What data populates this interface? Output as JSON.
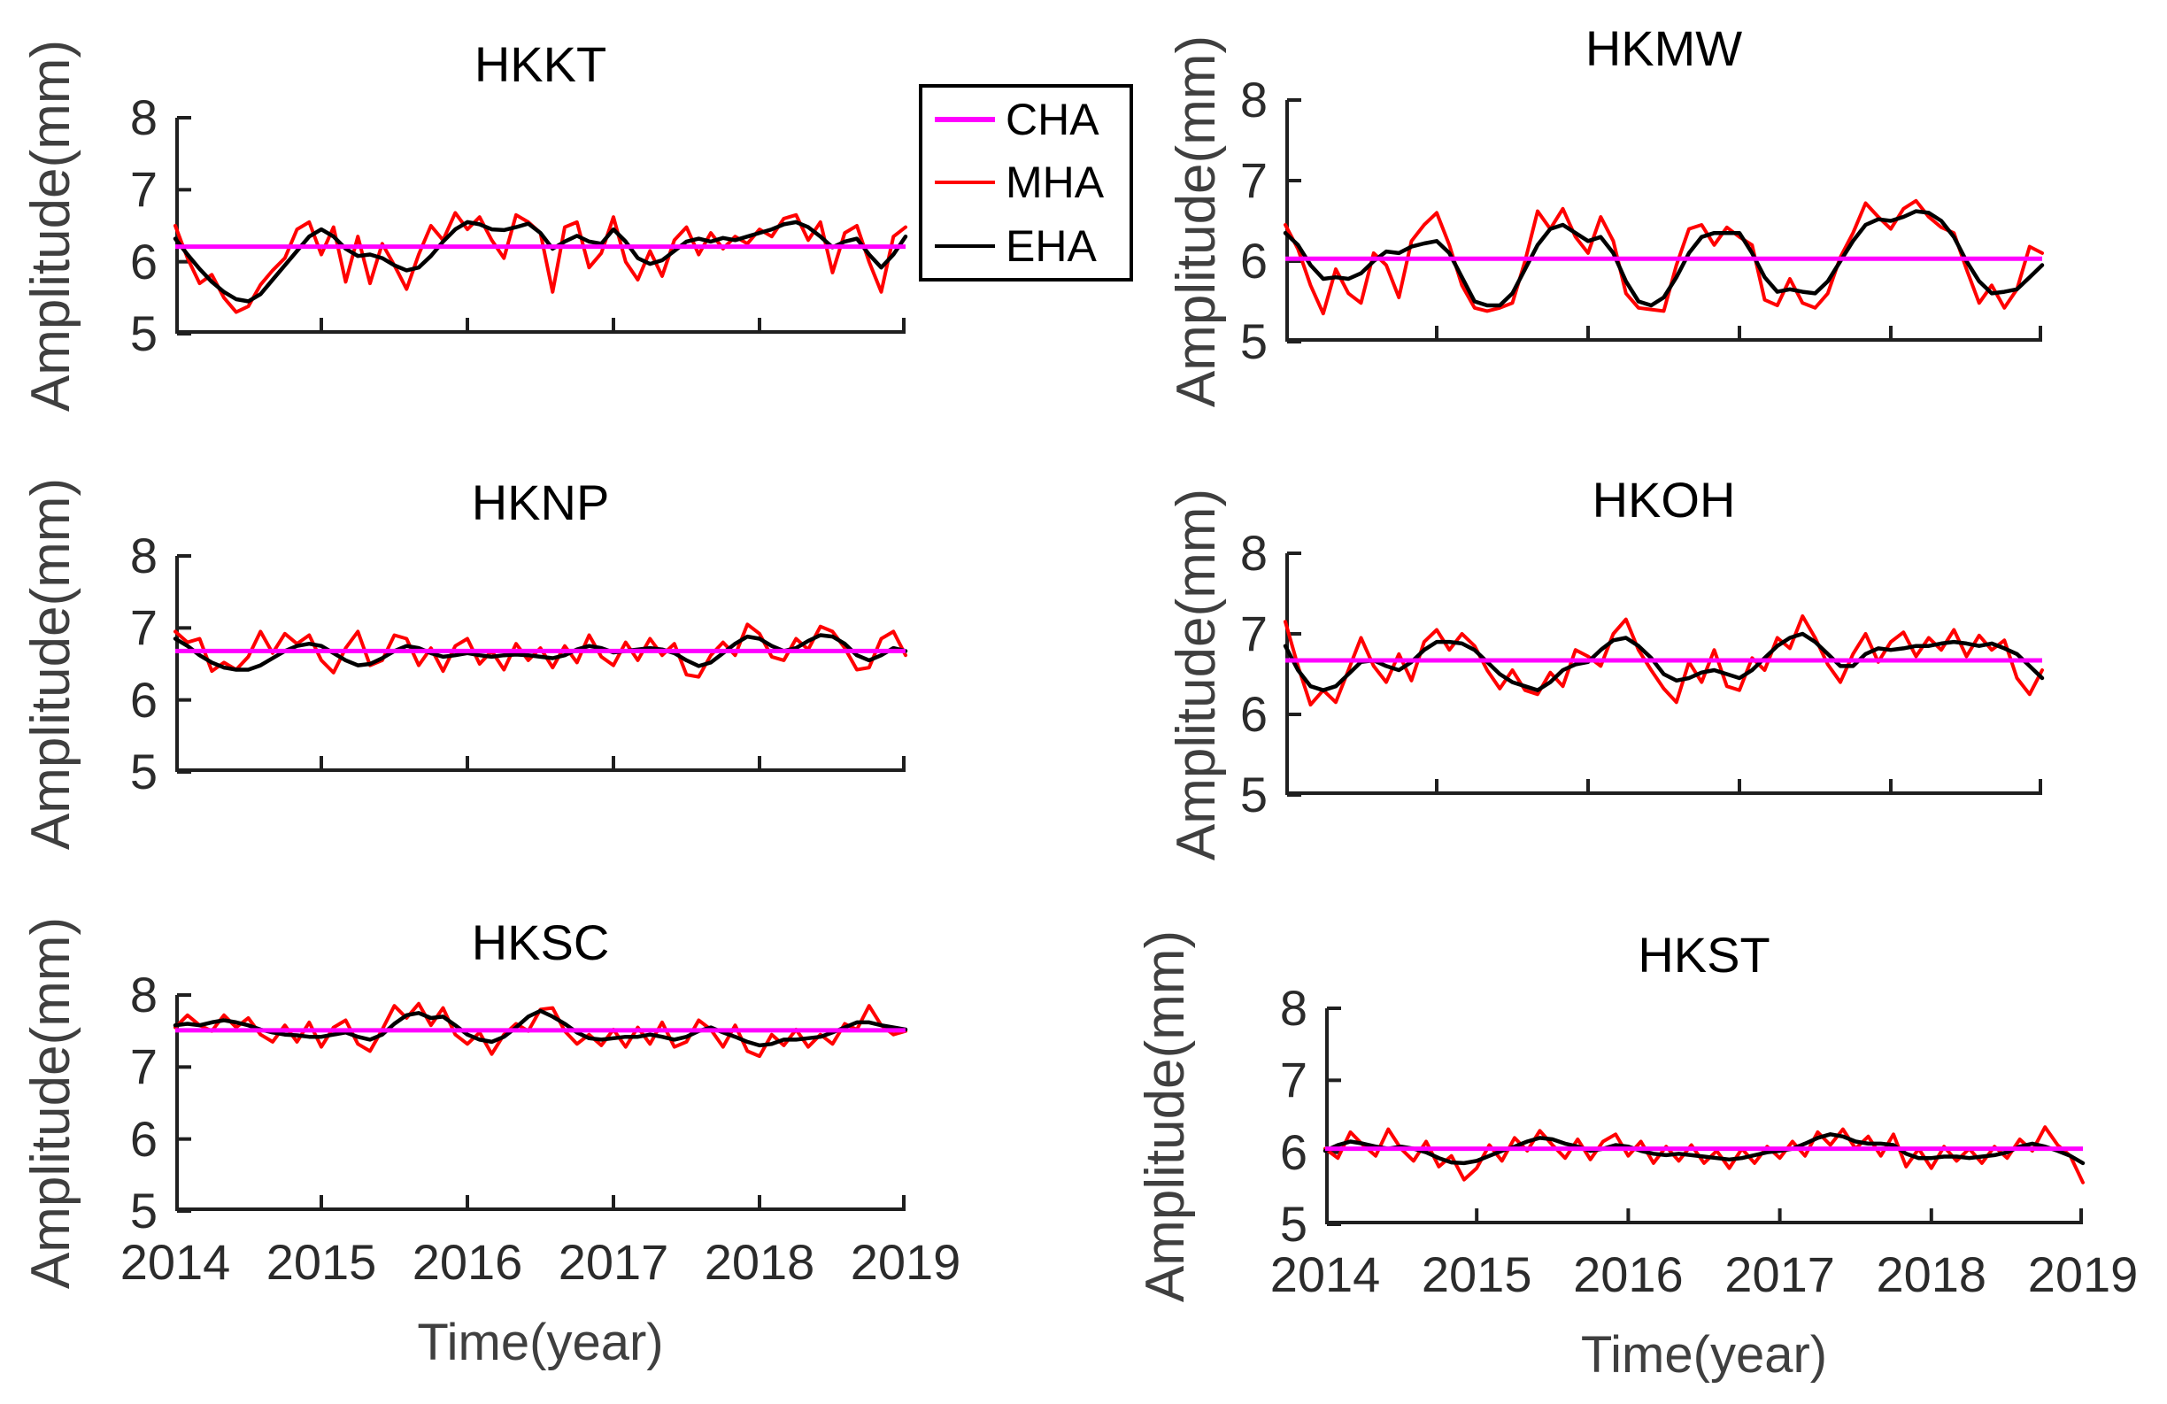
{
  "figure": {
    "ylabel": "Amplitude(mm)",
    "xlabel": "Time(year)",
    "colors": {
      "cha": "#ff00ff",
      "mha": "#ff0000",
      "eha": "#000000",
      "axis": "#1f1f1f",
      "tick_label": "#2b2b2b",
      "axis_label": "#3f3f3f"
    }
  },
  "legend": {
    "items": [
      {
        "label": "CHA",
        "color": "#ff00ff",
        "thickness": 6
      },
      {
        "label": "MHA",
        "color": "#ff0000",
        "thickness": 4
      },
      {
        "label": "EHA",
        "color": "#000000",
        "thickness": 4
      }
    ]
  },
  "chart_data": [
    {
      "type": "line",
      "title": "HKKT",
      "ylabel": "Amplitude(mm)",
      "xlim": [
        2014,
        2019
      ],
      "ylim": [
        5,
        8
      ],
      "xticks": [
        2014,
        2015,
        2016,
        2017,
        2018,
        2019
      ],
      "yticks": [
        5,
        6,
        7,
        8
      ],
      "x_tick_labels_visible": false,
      "x_start": 2014,
      "x_end": 2019,
      "n_points": 61,
      "series": [
        {
          "name": "CHA",
          "kind": "constant",
          "value": 6.21
        },
        {
          "name": "MHA",
          "kind": "curve",
          "values": [
            6.5,
            6.05,
            5.7,
            5.82,
            5.5,
            5.3,
            5.38,
            5.68,
            5.88,
            6.05,
            6.45,
            6.55,
            6.1,
            6.48,
            5.72,
            6.35,
            5.7,
            6.25,
            5.95,
            5.62,
            6.1,
            6.5,
            6.3,
            6.68,
            6.45,
            6.62,
            6.3,
            6.05,
            6.65,
            6.55,
            6.4,
            5.58,
            6.48,
            6.55,
            5.92,
            6.12,
            6.62,
            6.0,
            5.75,
            6.15,
            5.8,
            6.3,
            6.48,
            6.1,
            6.4,
            6.18,
            6.35,
            6.25,
            6.45,
            6.35,
            6.6,
            6.65,
            6.3,
            6.55,
            5.85,
            6.4,
            6.5,
            6.0,
            5.58,
            6.35,
            6.48
          ]
        },
        {
          "name": "EHA",
          "kind": "curve",
          "values": [
            6.32,
            6.1,
            5.9,
            5.72,
            5.58,
            5.48,
            5.45,
            5.55,
            5.75,
            5.95,
            6.15,
            6.35,
            6.45,
            6.35,
            6.18,
            6.08,
            6.1,
            6.05,
            5.95,
            5.88,
            5.92,
            6.08,
            6.28,
            6.45,
            6.55,
            6.52,
            6.45,
            6.44,
            6.48,
            6.53,
            6.4,
            6.18,
            6.28,
            6.36,
            6.28,
            6.25,
            6.45,
            6.28,
            6.05,
            5.97,
            6.02,
            6.15,
            6.28,
            6.32,
            6.28,
            6.33,
            6.3,
            6.35,
            6.4,
            6.45,
            6.52,
            6.55,
            6.48,
            6.35,
            6.2,
            6.28,
            6.32,
            6.1,
            5.92,
            6.1,
            6.35
          ]
        }
      ]
    },
    {
      "type": "line",
      "title": "HKMW",
      "ylabel": "Amplitude(mm)",
      "xlim": [
        2014,
        2019
      ],
      "ylim": [
        5,
        8
      ],
      "xticks": [
        2014,
        2015,
        2016,
        2017,
        2018,
        2019
      ],
      "yticks": [
        5,
        6,
        7,
        8
      ],
      "x_tick_labels_visible": false,
      "x_start": 2014,
      "x_end": 2019,
      "n_points": 61,
      "series": [
        {
          "name": "CHA",
          "kind": "constant",
          "value": 6.03
        },
        {
          "name": "MHA",
          "kind": "curve",
          "values": [
            6.45,
            6.15,
            5.7,
            5.35,
            5.9,
            5.6,
            5.48,
            6.1,
            5.95,
            5.55,
            6.25,
            6.45,
            6.6,
            6.2,
            5.7,
            5.42,
            5.38,
            5.42,
            5.48,
            6.0,
            6.62,
            6.4,
            6.65,
            6.3,
            6.1,
            6.55,
            6.25,
            5.6,
            5.42,
            5.4,
            5.38,
            5.95,
            6.4,
            6.45,
            6.2,
            6.42,
            6.3,
            6.2,
            5.52,
            5.45,
            5.78,
            5.48,
            5.42,
            5.6,
            6.05,
            6.35,
            6.72,
            6.55,
            6.4,
            6.65,
            6.75,
            6.55,
            6.42,
            6.35,
            5.9,
            5.48,
            5.7,
            5.42,
            5.65,
            6.18,
            6.1
          ]
        },
        {
          "name": "EHA",
          "kind": "curve",
          "values": [
            6.35,
            6.2,
            5.95,
            5.78,
            5.8,
            5.78,
            5.85,
            6.0,
            6.12,
            6.1,
            6.18,
            6.22,
            6.25,
            6.1,
            5.8,
            5.5,
            5.45,
            5.45,
            5.6,
            5.9,
            6.2,
            6.4,
            6.45,
            6.35,
            6.25,
            6.3,
            6.1,
            5.75,
            5.5,
            5.45,
            5.55,
            5.8,
            6.1,
            6.3,
            6.35,
            6.35,
            6.35,
            6.1,
            5.8,
            5.62,
            5.65,
            5.62,
            5.6,
            5.75,
            6.0,
            6.25,
            6.45,
            6.52,
            6.5,
            6.55,
            6.62,
            6.6,
            6.5,
            6.3,
            6.0,
            5.75,
            5.6,
            5.62,
            5.65,
            5.8,
            5.95
          ]
        }
      ]
    },
    {
      "type": "line",
      "title": "HKNP",
      "ylabel": "Amplitude(mm)",
      "xlim": [
        2014,
        2019
      ],
      "ylim": [
        5,
        8
      ],
      "xticks": [
        2014,
        2015,
        2016,
        2017,
        2018,
        2019
      ],
      "yticks": [
        5,
        6,
        7,
        8
      ],
      "x_tick_labels_visible": false,
      "x_start": 2014,
      "x_end": 2019,
      "n_points": 61,
      "series": [
        {
          "name": "CHA",
          "kind": "constant",
          "value": 6.68
        },
        {
          "name": "MHA",
          "kind": "curve",
          "values": [
            6.95,
            6.8,
            6.85,
            6.4,
            6.52,
            6.42,
            6.6,
            6.95,
            6.65,
            6.92,
            6.78,
            6.9,
            6.55,
            6.38,
            6.72,
            6.95,
            6.48,
            6.55,
            6.9,
            6.85,
            6.48,
            6.72,
            6.4,
            6.75,
            6.85,
            6.5,
            6.68,
            6.42,
            6.78,
            6.55,
            6.72,
            6.45,
            6.75,
            6.52,
            6.9,
            6.6,
            6.48,
            6.8,
            6.55,
            6.85,
            6.62,
            6.78,
            6.35,
            6.32,
            6.62,
            6.8,
            6.62,
            7.05,
            6.92,
            6.6,
            6.55,
            6.85,
            6.7,
            7.02,
            6.95,
            6.72,
            6.42,
            6.45,
            6.85,
            6.95,
            6.62
          ]
        },
        {
          "name": "EHA",
          "kind": "curve",
          "values": [
            6.85,
            6.75,
            6.62,
            6.52,
            6.45,
            6.42,
            6.42,
            6.48,
            6.58,
            6.68,
            6.75,
            6.78,
            6.75,
            6.65,
            6.55,
            6.48,
            6.5,
            6.58,
            6.68,
            6.75,
            6.72,
            6.65,
            6.6,
            6.62,
            6.65,
            6.62,
            6.6,
            6.62,
            6.63,
            6.62,
            6.6,
            6.58,
            6.62,
            6.7,
            6.75,
            6.72,
            6.66,
            6.68,
            6.7,
            6.72,
            6.7,
            6.65,
            6.55,
            6.47,
            6.52,
            6.65,
            6.78,
            6.88,
            6.85,
            6.75,
            6.68,
            6.72,
            6.82,
            6.9,
            6.88,
            6.78,
            6.62,
            6.55,
            6.62,
            6.72,
            6.68
          ]
        }
      ]
    },
    {
      "type": "line",
      "title": "HKOH",
      "ylabel": "Amplitude(mm)",
      "xlim": [
        2014,
        2019
      ],
      "ylim": [
        5,
        8
      ],
      "xticks": [
        2014,
        2015,
        2016,
        2017,
        2018,
        2019
      ],
      "yticks": [
        5,
        6,
        7,
        8
      ],
      "x_tick_labels_visible": false,
      "x_start": 2014,
      "x_end": 2019,
      "n_points": 61,
      "series": [
        {
          "name": "CHA",
          "kind": "constant",
          "value": 6.67
        },
        {
          "name": "MHA",
          "kind": "curve",
          "values": [
            7.15,
            6.6,
            6.12,
            6.3,
            6.15,
            6.55,
            6.95,
            6.6,
            6.4,
            6.75,
            6.42,
            6.9,
            7.05,
            6.8,
            7.0,
            6.85,
            6.55,
            6.32,
            6.55,
            6.3,
            6.25,
            6.52,
            6.35,
            6.8,
            6.72,
            6.6,
            7.0,
            7.18,
            6.8,
            6.55,
            6.32,
            6.15,
            6.65,
            6.4,
            6.8,
            6.35,
            6.3,
            6.7,
            6.55,
            6.95,
            6.82,
            7.22,
            6.95,
            6.62,
            6.4,
            6.75,
            7.0,
            6.65,
            6.9,
            7.02,
            6.72,
            6.95,
            6.8,
            7.05,
            6.72,
            6.98,
            6.8,
            6.92,
            6.45,
            6.25,
            6.55
          ]
        },
        {
          "name": "EHA",
          "kind": "curve",
          "values": [
            6.85,
            6.55,
            6.35,
            6.3,
            6.35,
            6.5,
            6.65,
            6.67,
            6.6,
            6.55,
            6.65,
            6.8,
            6.9,
            6.9,
            6.88,
            6.8,
            6.65,
            6.5,
            6.4,
            6.35,
            6.3,
            6.4,
            6.55,
            6.62,
            6.65,
            6.8,
            6.92,
            6.95,
            6.85,
            6.7,
            6.5,
            6.42,
            6.45,
            6.52,
            6.55,
            6.5,
            6.45,
            6.55,
            6.7,
            6.85,
            6.95,
            7.0,
            6.9,
            6.75,
            6.6,
            6.6,
            6.75,
            6.82,
            6.8,
            6.82,
            6.85,
            6.85,
            6.88,
            6.9,
            6.88,
            6.85,
            6.88,
            6.82,
            6.75,
            6.6,
            6.45
          ]
        }
      ]
    },
    {
      "type": "line",
      "title": "HKSC",
      "ylabel": "Amplitude(mm)",
      "xlabel": "Time(year)",
      "xlim": [
        2014,
        2019
      ],
      "ylim": [
        5,
        8
      ],
      "xticks": [
        2014,
        2015,
        2016,
        2017,
        2018,
        2019
      ],
      "yticks": [
        5,
        6,
        7,
        8
      ],
      "x_tick_labels_visible": true,
      "x_start": 2014,
      "x_end": 2019,
      "n_points": 61,
      "series": [
        {
          "name": "CHA",
          "kind": "constant",
          "value": 7.51
        },
        {
          "name": "MHA",
          "kind": "curve",
          "values": [
            7.55,
            7.72,
            7.58,
            7.5,
            7.72,
            7.55,
            7.68,
            7.45,
            7.35,
            7.58,
            7.35,
            7.62,
            7.28,
            7.55,
            7.65,
            7.32,
            7.22,
            7.52,
            7.85,
            7.68,
            7.88,
            7.58,
            7.82,
            7.45,
            7.32,
            7.48,
            7.18,
            7.45,
            7.6,
            7.5,
            7.8,
            7.82,
            7.5,
            7.32,
            7.45,
            7.3,
            7.52,
            7.28,
            7.55,
            7.32,
            7.62,
            7.28,
            7.35,
            7.65,
            7.52,
            7.28,
            7.58,
            7.22,
            7.15,
            7.45,
            7.3,
            7.52,
            7.28,
            7.45,
            7.32,
            7.6,
            7.52,
            7.85,
            7.58,
            7.45,
            7.5
          ]
        },
        {
          "name": "EHA",
          "kind": "curve",
          "values": [
            7.58,
            7.6,
            7.58,
            7.62,
            7.65,
            7.62,
            7.58,
            7.52,
            7.48,
            7.45,
            7.44,
            7.42,
            7.42,
            7.45,
            7.48,
            7.42,
            7.38,
            7.45,
            7.6,
            7.72,
            7.75,
            7.68,
            7.7,
            7.58,
            7.45,
            7.38,
            7.35,
            7.42,
            7.55,
            7.7,
            7.78,
            7.7,
            7.6,
            7.48,
            7.4,
            7.38,
            7.4,
            7.42,
            7.42,
            7.45,
            7.42,
            7.38,
            7.42,
            7.5,
            7.55,
            7.48,
            7.42,
            7.35,
            7.3,
            7.32,
            7.38,
            7.38,
            7.4,
            7.42,
            7.48,
            7.55,
            7.62,
            7.62,
            7.58,
            7.55,
            7.52
          ]
        }
      ]
    },
    {
      "type": "line",
      "title": "HKST",
      "ylabel": "Amplitude(mm)",
      "xlabel": "Time(year)",
      "xlim": [
        2014,
        2019
      ],
      "ylim": [
        5,
        8
      ],
      "xticks": [
        2014,
        2015,
        2016,
        2017,
        2018,
        2019
      ],
      "yticks": [
        5,
        6,
        7,
        8
      ],
      "x_tick_labels_visible": true,
      "x_start": 2014,
      "x_end": 2019,
      "n_points": 61,
      "series": [
        {
          "name": "CHA",
          "kind": "constant",
          "value": 6.05
        },
        {
          "name": "MHA",
          "kind": "curve",
          "values": [
            6.05,
            5.92,
            6.28,
            6.1,
            5.95,
            6.32,
            6.05,
            5.88,
            6.15,
            5.8,
            5.95,
            5.62,
            5.78,
            6.1,
            5.88,
            6.2,
            6.02,
            6.3,
            6.1,
            5.92,
            6.18,
            5.9,
            6.15,
            6.25,
            5.95,
            6.15,
            5.85,
            6.08,
            5.88,
            6.1,
            5.85,
            6.02,
            5.78,
            6.05,
            5.85,
            6.08,
            5.92,
            6.15,
            5.95,
            6.28,
            6.1,
            6.32,
            6.05,
            6.22,
            5.95,
            6.25,
            5.8,
            6.05,
            5.78,
            6.08,
            5.88,
            6.05,
            5.85,
            6.08,
            5.92,
            6.18,
            6.02,
            6.35,
            6.1,
            5.95,
            5.58
          ]
        },
        {
          "name": "EHA",
          "kind": "curve",
          "values": [
            6.02,
            6.1,
            6.15,
            6.12,
            6.08,
            6.05,
            6.08,
            6.05,
            6.0,
            5.92,
            5.86,
            5.85,
            5.88,
            5.95,
            6.02,
            6.08,
            6.15,
            6.2,
            6.18,
            6.12,
            6.08,
            6.02,
            6.05,
            6.1,
            6.08,
            6.02,
            5.98,
            5.96,
            5.98,
            5.96,
            5.94,
            5.92,
            5.9,
            5.92,
            5.96,
            6.0,
            6.02,
            6.05,
            6.12,
            6.2,
            6.25,
            6.22,
            6.15,
            6.12,
            6.12,
            6.1,
            5.98,
            5.92,
            5.92,
            5.94,
            5.94,
            5.92,
            5.94,
            5.96,
            6.0,
            6.08,
            6.12,
            6.08,
            6.02,
            5.95,
            5.85
          ]
        }
      ]
    }
  ]
}
